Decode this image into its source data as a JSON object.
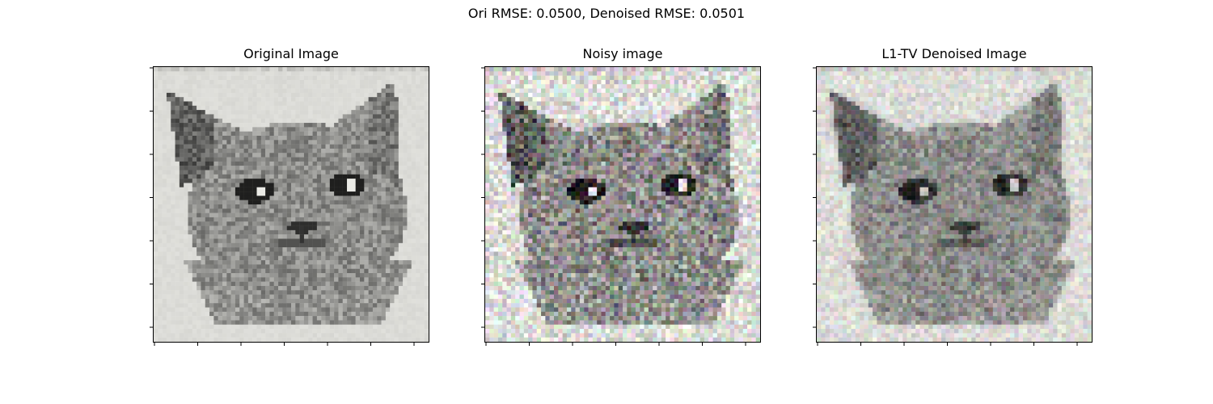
{
  "figure": {
    "suptitle": "Ori RMSE: 0.0500, Denoised RMSE: 0.0501"
  },
  "panels": [
    {
      "id": "original",
      "title": "Original Image",
      "noise": 0.0,
      "tint": 0.0,
      "smooth": 0.0
    },
    {
      "id": "noisy",
      "title": "Noisy image",
      "noise": 0.22,
      "tint": 0.18,
      "smooth": 0.0
    },
    {
      "id": "denoised",
      "title": "L1-TV Denoised Image",
      "noise": 0.12,
      "tint": 0.12,
      "smooth": 0.35
    }
  ],
  "axes": {
    "xticks": 7,
    "yticks": 7,
    "tick_labels": "hidden"
  },
  "subject": "pixelated grey cat face"
}
